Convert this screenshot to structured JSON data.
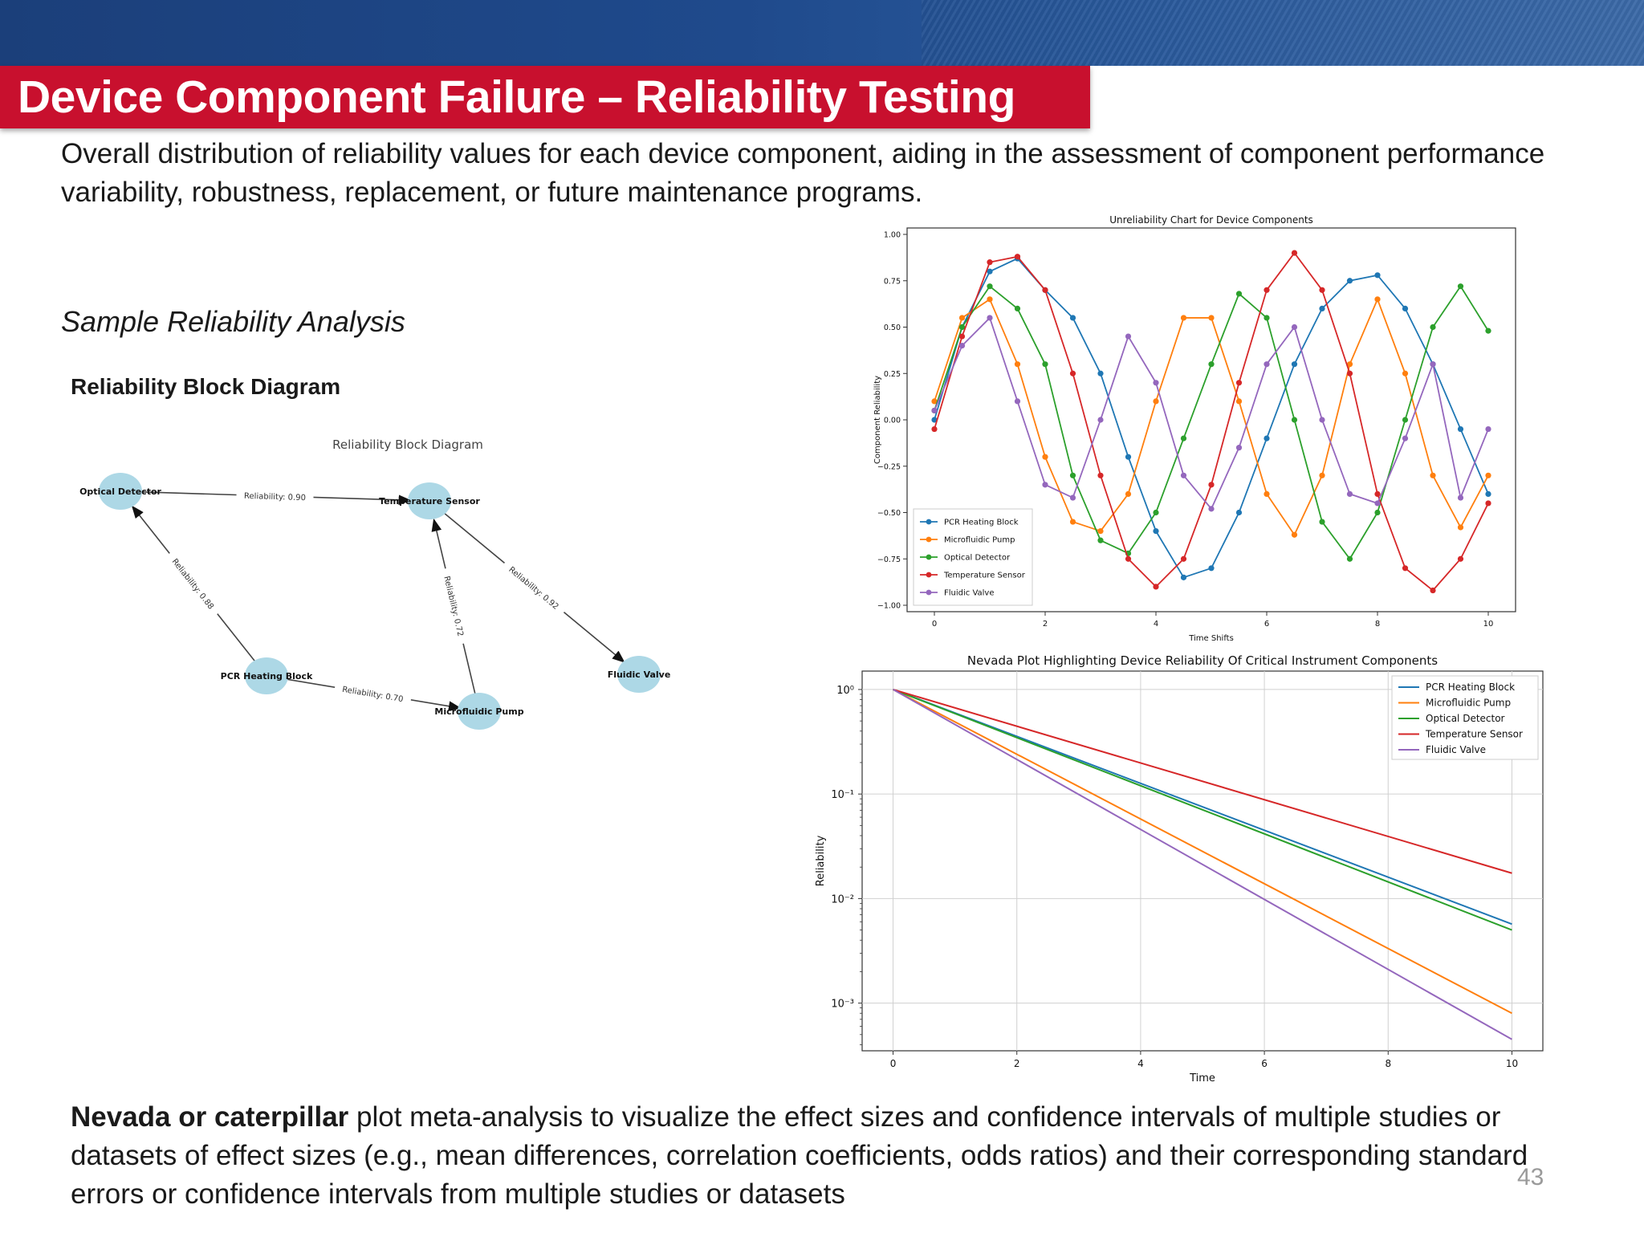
{
  "header": {
    "title": "Device Component Failure – Reliability Testing"
  },
  "intro_text": "Overall distribution of reliability values for each device component, aiding in the assessment of component performance variability, robustness, replacement, or future maintenance programs.",
  "sample_heading": "Sample Reliability Analysis",
  "rbd_heading": "Reliability Block Diagram",
  "footer": {
    "bold": "Nevada or caterpillar",
    "text": " plot meta-analysis to visualize the effect sizes and confidence intervals of multiple studies or datasets of effect sizes (e.g., mean differences, correlation coefficients, odds ratios) and their corresponding standard errors or confidence intervals from multiple studies or datasets"
  },
  "page_number": "43",
  "colors": {
    "node": "#add8e6",
    "blue": "#1f77b4",
    "orange": "#ff7f0e",
    "green": "#2ca02c",
    "red": "#d62728",
    "purple": "#9467bd"
  },
  "diagram": {
    "title": "Reliability Block Diagram",
    "nodes": [
      {
        "id": "od",
        "label": "Optical Detector"
      },
      {
        "id": "ts",
        "label": "Temperature Sensor"
      },
      {
        "id": "pcr",
        "label": "PCR Heating Block"
      },
      {
        "id": "mp",
        "label": "Microfluidic Pump"
      },
      {
        "id": "fv",
        "label": "Fluidic Valve"
      }
    ],
    "edges": [
      {
        "from": "od",
        "to": "ts",
        "label": "Reliability: 0.90"
      },
      {
        "from": "pcr",
        "to": "od",
        "label": "Reliability: 0.88"
      },
      {
        "from": "mp",
        "to": "ts",
        "label": "Reliability: 0.72"
      },
      {
        "from": "ts",
        "to": "fv",
        "label": "Reliability: 0.92"
      },
      {
        "from": "pcr",
        "to": "mp",
        "label": "Reliability: 0.70"
      }
    ]
  },
  "chart_data": [
    {
      "type": "line",
      "title": "Unreliability Chart for Device Components",
      "xlabel": "Time Shifts",
      "ylabel": "Component Reliability",
      "xlim": [
        0,
        10
      ],
      "ylim": [
        -1.0,
        1.0
      ],
      "xticks": [
        "0",
        "2",
        "4",
        "6",
        "8",
        "10"
      ],
      "yticks": [
        "1.00",
        "0.75",
        "0.50",
        "0.25",
        "0.00",
        "−0.25",
        "−0.50",
        "−0.75",
        "−1.00"
      ],
      "grid": false,
      "legend": "bottom-left",
      "markers": true,
      "series": [
        {
          "name": "PCR Heating Block",
          "color": "#1f77b4",
          "x": [
            0,
            0.5,
            1.0,
            1.5,
            2.0,
            2.5,
            3.0,
            3.5,
            4.0,
            4.5,
            5.0,
            5.5,
            6.0,
            6.5,
            7.0,
            7.5,
            8.0,
            8.5,
            9.0,
            9.5,
            10.0
          ],
          "y": [
            0.0,
            0.5,
            0.8,
            0.87,
            0.7,
            0.55,
            0.25,
            -0.2,
            -0.6,
            -0.85,
            -0.8,
            -0.5,
            -0.1,
            0.3,
            0.6,
            0.75,
            0.78,
            0.6,
            0.3,
            -0.05,
            -0.4
          ]
        },
        {
          "name": "Microfluidic Pump",
          "color": "#ff7f0e",
          "x": [
            0,
            0.5,
            1.0,
            1.5,
            2.0,
            2.5,
            3.0,
            3.5,
            4.0,
            4.5,
            5.0,
            5.5,
            6.0,
            6.5,
            7.0,
            7.5,
            8.0,
            8.5,
            9.0,
            9.5,
            10.0
          ],
          "y": [
            0.1,
            0.55,
            0.65,
            0.3,
            -0.2,
            -0.55,
            -0.6,
            -0.4,
            0.1,
            0.55,
            0.55,
            0.1,
            -0.4,
            -0.62,
            -0.3,
            0.3,
            0.65,
            0.25,
            -0.3,
            -0.58,
            -0.3
          ]
        },
        {
          "name": "Optical Detector",
          "color": "#2ca02c",
          "x": [
            0,
            0.5,
            1.0,
            1.5,
            2.0,
            2.5,
            3.0,
            3.5,
            4.0,
            4.5,
            5.0,
            5.5,
            6.0,
            6.5,
            7.0,
            7.5,
            8.0,
            8.5,
            9.0,
            9.5,
            10.0
          ],
          "y": [
            0.05,
            0.5,
            0.72,
            0.6,
            0.3,
            -0.3,
            -0.65,
            -0.72,
            -0.5,
            -0.1,
            0.3,
            0.68,
            0.55,
            0.0,
            -0.55,
            -0.75,
            -0.5,
            0.0,
            0.5,
            0.72,
            0.48
          ]
        },
        {
          "name": "Temperature Sensor",
          "color": "#d62728",
          "x": [
            0,
            0.5,
            1.0,
            1.5,
            2.0,
            2.5,
            3.0,
            3.5,
            4.0,
            4.5,
            5.0,
            5.5,
            6.0,
            6.5,
            7.0,
            7.5,
            8.0,
            8.5,
            9.0,
            9.5,
            10.0
          ],
          "y": [
            -0.05,
            0.45,
            0.85,
            0.88,
            0.7,
            0.25,
            -0.3,
            -0.75,
            -0.9,
            -0.75,
            -0.35,
            0.2,
            0.7,
            0.9,
            0.7,
            0.25,
            -0.4,
            -0.8,
            -0.92,
            -0.75,
            -0.45
          ]
        },
        {
          "name": "Fluidic Valve",
          "color": "#9467bd",
          "x": [
            0,
            0.5,
            1.0,
            1.5,
            2.0,
            2.5,
            3.0,
            3.5,
            4.0,
            4.5,
            5.0,
            5.5,
            6.0,
            6.5,
            7.0,
            7.5,
            8.0,
            8.5,
            9.0,
            9.5,
            10.0
          ],
          "y": [
            0.05,
            0.4,
            0.55,
            0.1,
            -0.35,
            -0.42,
            0.0,
            0.45,
            0.2,
            -0.3,
            -0.48,
            -0.15,
            0.3,
            0.5,
            0.0,
            -0.4,
            -0.45,
            -0.1,
            0.3,
            -0.42,
            -0.05
          ]
        }
      ]
    },
    {
      "type": "line",
      "title": "Nevada Plot Highlighting Device Reliability Of Critical Instrument Components",
      "xlabel": "Time",
      "ylabel": "Reliability",
      "xlim": [
        -0.5,
        10.5
      ],
      "yscale": "log",
      "ylim": [
        0.00035,
        1.5
      ],
      "xticks": [
        "0",
        "2",
        "4",
        "6",
        "8",
        "10"
      ],
      "yticks": [
        "10⁰",
        "10⁻¹",
        "10⁻²",
        "10⁻³"
      ],
      "grid": true,
      "legend": "top-right",
      "series": [
        {
          "name": "PCR Heating Block",
          "color": "#1f77b4",
          "x": [
            0,
            10
          ],
          "y": [
            1,
            0.0057
          ]
        },
        {
          "name": "Microfluidic Pump",
          "color": "#ff7f0e",
          "x": [
            0,
            10
          ],
          "y": [
            1,
            0.0008
          ]
        },
        {
          "name": "Optical Detector",
          "color": "#2ca02c",
          "x": [
            0,
            10
          ],
          "y": [
            1,
            0.005
          ]
        },
        {
          "name": "Temperature Sensor",
          "color": "#d62728",
          "x": [
            0,
            10
          ],
          "y": [
            1,
            0.0175
          ]
        },
        {
          "name": "Fluidic Valve",
          "color": "#9467bd",
          "x": [
            0,
            10
          ],
          "y": [
            1,
            0.00045
          ]
        }
      ]
    }
  ]
}
